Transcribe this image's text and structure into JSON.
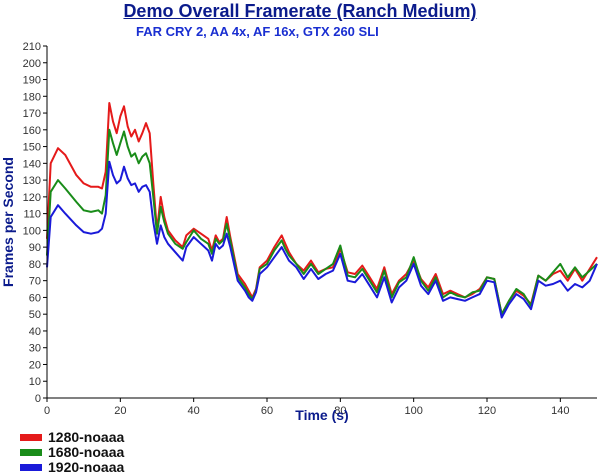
{
  "chart_data": {
    "type": "line",
    "title": "Demo Overall Framerate (Ranch Medium)",
    "subtitle": "FAR CRY 2, AA 4x, AF 16x,  GTX 260 SLI",
    "xlabel": "Time (s)",
    "ylabel": "Frames per Second",
    "xlim": [
      0,
      150
    ],
    "ylim": [
      0,
      210
    ],
    "x_ticks": [
      0,
      20,
      40,
      60,
      80,
      100,
      120,
      140
    ],
    "y_ticks": [
      0,
      10,
      20,
      30,
      40,
      50,
      60,
      70,
      80,
      90,
      100,
      110,
      120,
      130,
      140,
      150,
      160,
      170,
      180,
      190,
      200,
      210
    ],
    "grid": false,
    "legend_position": "bottom-left",
    "series": [
      {
        "name": "1280-noaaa",
        "color": "#e51a1a",
        "x": [
          0,
          1,
          3,
          5,
          8,
          10,
          12,
          14,
          15,
          16,
          17,
          18,
          19,
          20,
          21,
          22,
          23,
          24,
          25,
          26,
          27,
          28,
          29,
          30,
          31,
          32,
          33,
          35,
          37,
          38,
          40,
          42,
          44,
          45,
          46,
          47,
          48,
          49,
          50,
          52,
          54,
          55,
          56,
          57,
          58,
          60,
          62,
          64,
          65,
          66,
          68,
          70,
          72,
          74,
          76,
          78,
          80,
          82,
          84,
          86,
          88,
          90,
          92,
          94,
          96,
          98,
          100,
          102,
          104,
          106,
          108,
          110,
          112,
          114,
          116,
          118,
          120,
          122,
          124,
          126,
          128,
          130,
          132,
          134,
          136,
          138,
          140,
          142,
          144,
          146,
          148,
          150
        ],
        "y": [
          95,
          140,
          149,
          145,
          133,
          128,
          126,
          126,
          125,
          135,
          176,
          165,
          158,
          168,
          174,
          162,
          156,
          160,
          153,
          158,
          164,
          158,
          128,
          100,
          120,
          108,
          100,
          94,
          90,
          97,
          101,
          98,
          95,
          88,
          97,
          93,
          95,
          108,
          96,
          74,
          68,
          64,
          60,
          65,
          78,
          82,
          90,
          97,
          92,
          87,
          80,
          76,
          82,
          75,
          77,
          78,
          89,
          75,
          74,
          79,
          72,
          65,
          78,
          62,
          70,
          74,
          82,
          71,
          66,
          74,
          62,
          64,
          62,
          60,
          62,
          65,
          72,
          71,
          50,
          58,
          64,
          61,
          56,
          73,
          70,
          74,
          76,
          70,
          77,
          70,
          77,
          84
        ]
      },
      {
        "name": "1680-noaaa",
        "color": "#198c19",
        "x": [
          0,
          1,
          3,
          5,
          8,
          10,
          12,
          14,
          15,
          16,
          17,
          18,
          19,
          20,
          21,
          22,
          23,
          24,
          25,
          26,
          27,
          28,
          29,
          30,
          31,
          32,
          33,
          35,
          37,
          38,
          40,
          42,
          44,
          45,
          46,
          47,
          48,
          49,
          50,
          52,
          54,
          55,
          56,
          57,
          58,
          60,
          62,
          64,
          65,
          66,
          68,
          70,
          72,
          74,
          76,
          78,
          80,
          82,
          84,
          86,
          88,
          90,
          92,
          94,
          96,
          98,
          100,
          102,
          104,
          106,
          108,
          110,
          112,
          114,
          116,
          118,
          120,
          122,
          124,
          126,
          128,
          130,
          132,
          134,
          136,
          138,
          140,
          142,
          144,
          146,
          148,
          150
        ],
        "y": [
          85,
          123,
          130,
          125,
          117,
          112,
          111,
          112,
          110,
          121,
          160,
          152,
          145,
          152,
          159,
          150,
          144,
          146,
          140,
          144,
          146,
          140,
          120,
          98,
          114,
          105,
          98,
          92,
          89,
          93,
          100,
          95,
          92,
          86,
          95,
          92,
          94,
          104,
          94,
          72,
          66,
          62,
          59,
          64,
          77,
          80,
          88,
          94,
          89,
          85,
          80,
          74,
          80,
          74,
          77,
          80,
          91,
          73,
          72,
          77,
          70,
          63,
          76,
          60,
          69,
          72,
          84,
          70,
          64,
          72,
          60,
          63,
          61,
          60,
          63,
          64,
          72,
          71,
          50,
          58,
          65,
          62,
          55,
          73,
          70,
          75,
          80,
          72,
          78,
          72,
          76,
          80
        ]
      },
      {
        "name": "1920-noaaa",
        "color": "#1a1ad9",
        "x": [
          0,
          1,
          3,
          5,
          8,
          10,
          12,
          14,
          15,
          16,
          17,
          18,
          19,
          20,
          21,
          22,
          23,
          24,
          25,
          26,
          27,
          28,
          29,
          30,
          31,
          32,
          33,
          35,
          37,
          38,
          40,
          42,
          44,
          45,
          46,
          47,
          48,
          49,
          50,
          52,
          54,
          55,
          56,
          57,
          58,
          60,
          62,
          64,
          65,
          66,
          68,
          70,
          72,
          74,
          76,
          78,
          80,
          82,
          84,
          86,
          88,
          90,
          92,
          94,
          96,
          98,
          100,
          102,
          104,
          106,
          108,
          110,
          112,
          114,
          116,
          118,
          120,
          122,
          124,
          126,
          128,
          130,
          132,
          134,
          136,
          138,
          140,
          142,
          144,
          146,
          148,
          150
        ],
        "y": [
          78,
          108,
          115,
          110,
          103,
          99,
          98,
          99,
          101,
          110,
          141,
          133,
          128,
          130,
          138,
          131,
          127,
          128,
          123,
          126,
          127,
          123,
          105,
          92,
          103,
          96,
          92,
          87,
          82,
          90,
          96,
          92,
          88,
          82,
          92,
          89,
          91,
          98,
          90,
          70,
          64,
          60,
          58,
          63,
          74,
          78,
          84,
          90,
          86,
          82,
          78,
          71,
          77,
          71,
          74,
          76,
          86,
          70,
          69,
          74,
          67,
          60,
          72,
          57,
          66,
          70,
          80,
          67,
          62,
          70,
          58,
          60,
          59,
          58,
          60,
          62,
          70,
          69,
          48,
          56,
          62,
          59,
          53,
          70,
          67,
          68,
          70,
          64,
          68,
          66,
          70,
          80
        ]
      }
    ]
  }
}
